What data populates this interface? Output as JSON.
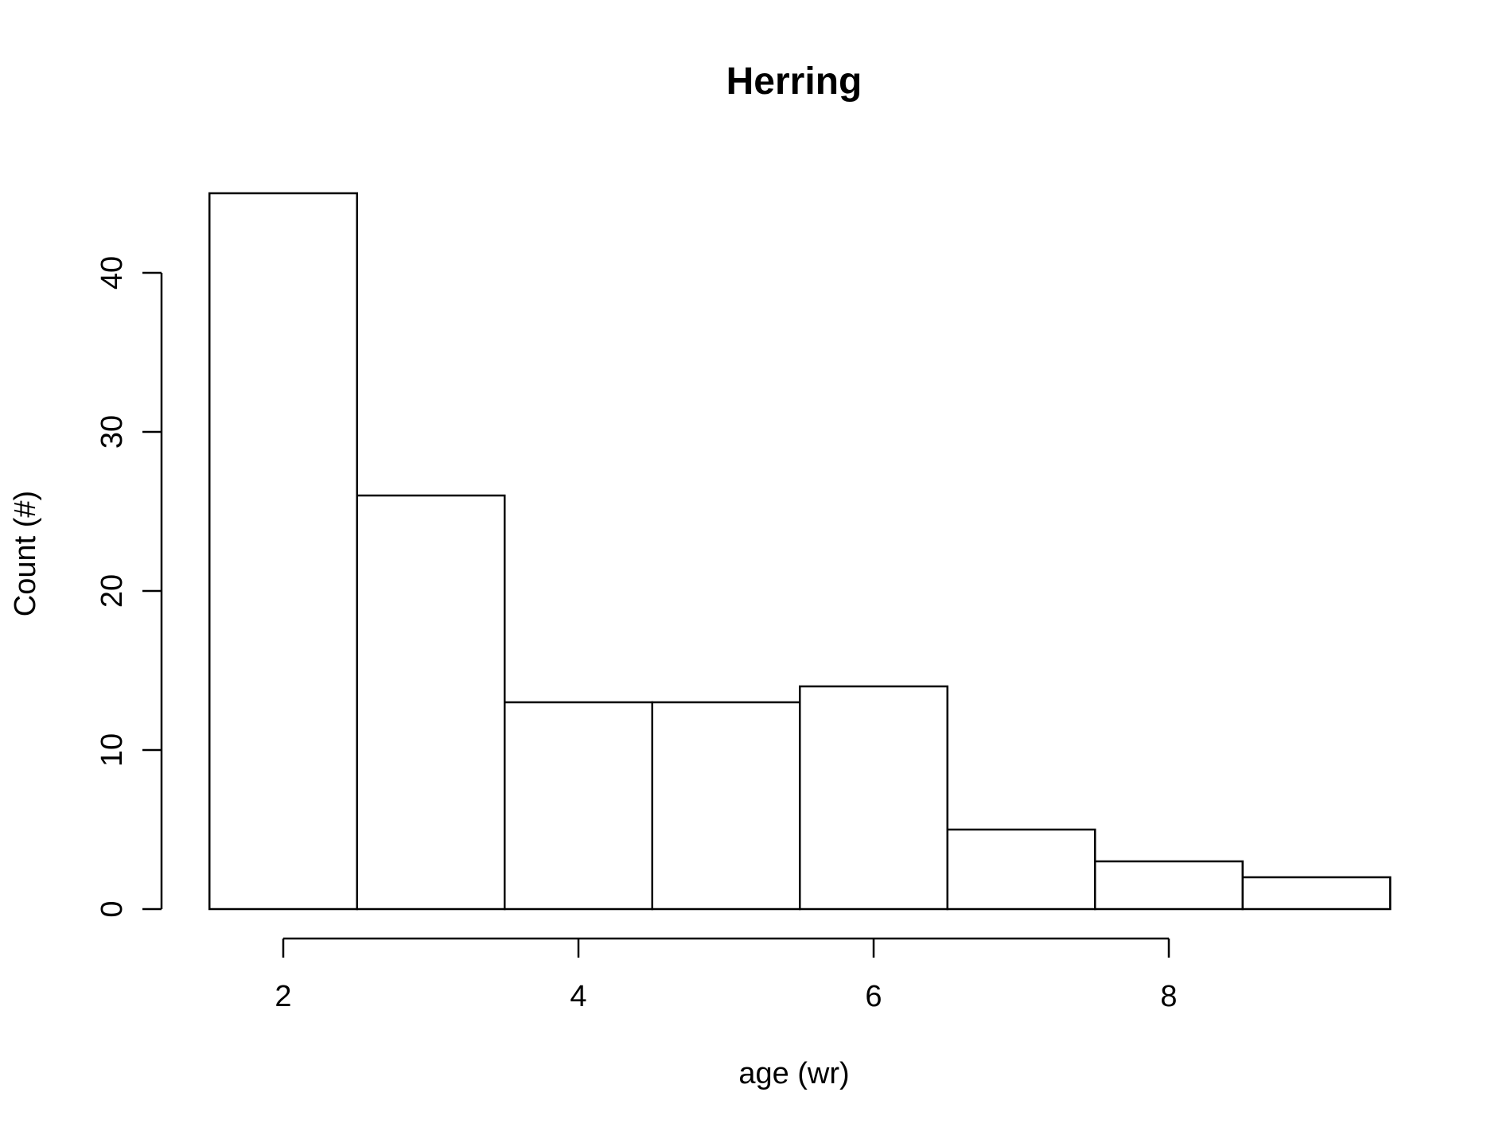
{
  "chart_data": {
    "type": "bar",
    "title": "Herring",
    "xlabel": "age (wr)",
    "ylabel": "Count (#)",
    "bins": [
      {
        "start": 1.5,
        "end": 2.5,
        "value": 45
      },
      {
        "start": 2.5,
        "end": 3.5,
        "value": 26
      },
      {
        "start": 3.5,
        "end": 4.5,
        "value": 13
      },
      {
        "start": 4.5,
        "end": 5.5,
        "value": 13
      },
      {
        "start": 5.5,
        "end": 6.5,
        "value": 14
      },
      {
        "start": 6.5,
        "end": 7.5,
        "value": 5
      },
      {
        "start": 7.5,
        "end": 8.5,
        "value": 3
      },
      {
        "start": 8.5,
        "end": 9.5,
        "value": 2
      }
    ],
    "x_ticks": [
      2,
      4,
      6,
      8
    ],
    "y_ticks": [
      0,
      10,
      20,
      30,
      40
    ],
    "xlim": [
      2,
      8
    ],
    "ylim": [
      0,
      45
    ],
    "grid": false,
    "bar_fill": "#ffffff",
    "stroke_color": "#000000"
  }
}
